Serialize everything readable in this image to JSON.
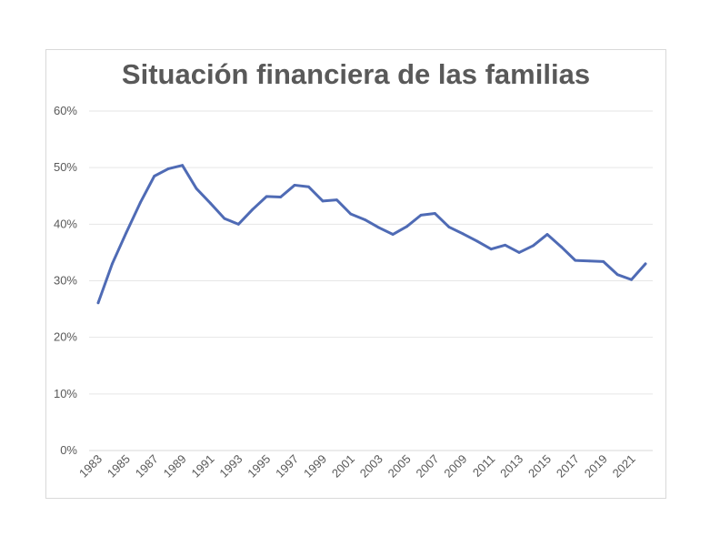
{
  "chart_data": {
    "type": "line",
    "title": "Situación financiera de las familias",
    "xlabel": "",
    "ylabel": "",
    "ylim": [
      0,
      60
    ],
    "y_tick_labels": [
      "0%",
      "10%",
      "20%",
      "30%",
      "40%",
      "50%",
      "60%"
    ],
    "x_tick_labels": [
      "1983",
      "1985",
      "1987",
      "1989",
      "1991",
      "1993",
      "1995",
      "1997",
      "1999",
      "2001",
      "2003",
      "2005",
      "2007",
      "2009",
      "2011",
      "2013",
      "2015",
      "2017",
      "2019",
      "2021"
    ],
    "grid": true,
    "legend": "none",
    "line_color": "#4f6bb5",
    "x": [
      1983,
      1984,
      1985,
      1986,
      1987,
      1988,
      1989,
      1990,
      1991,
      1992,
      1993,
      1994,
      1995,
      1996,
      1997,
      1998,
      1999,
      2000,
      2001,
      2002,
      2003,
      2004,
      2005,
      2006,
      2007,
      2008,
      2009,
      2010,
      2011,
      2012,
      2013,
      2014,
      2015,
      2016,
      2017,
      2018,
      2019,
      2020,
      2021,
      2022
    ],
    "series": [
      {
        "values": [
          26.1,
          33.0,
          38.5,
          43.8,
          48.5,
          49.8,
          50.4,
          46.3,
          43.7,
          41.0,
          40.0,
          42.6,
          44.9,
          44.8,
          46.9,
          46.6,
          44.1,
          44.3,
          41.8,
          40.8,
          39.4,
          38.2,
          39.6,
          41.6,
          41.9,
          39.5,
          38.3,
          37.0,
          35.6,
          36.3,
          35.0,
          36.2,
          38.2,
          36.0,
          33.6,
          33.5,
          33.4,
          31.1,
          30.2,
          33.0
        ]
      }
    ]
  }
}
